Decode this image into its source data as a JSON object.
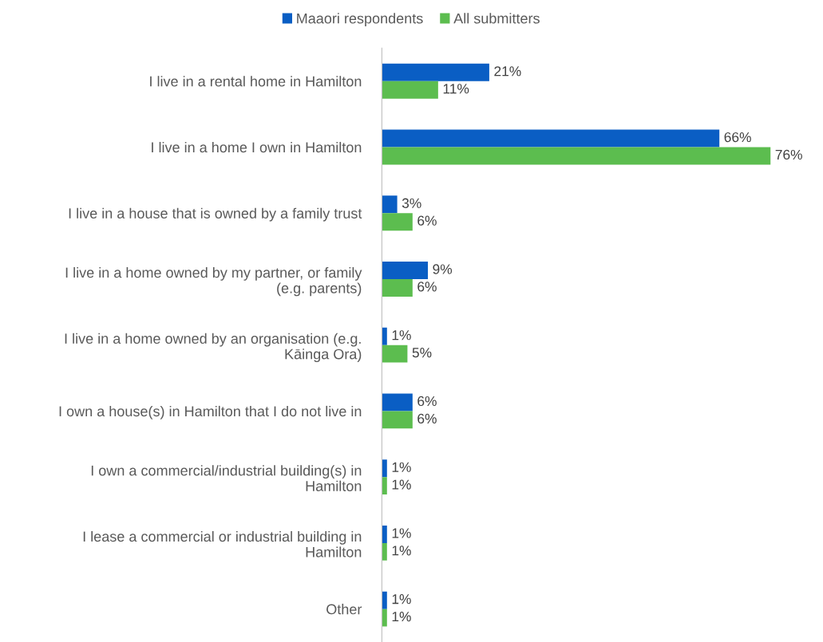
{
  "chart_data": {
    "type": "bar",
    "orientation": "horizontal",
    "categories": [
      "I live in a rental home in Hamilton",
      "I live in a home I own in Hamilton",
      "I live in a house that is owned by a family trust",
      "I live in a home owned by my partner, or family\n(e.g. parents)",
      "I live in a home owned by an organisation (e.g.\nKāinga Ora)",
      "I own a house(s) in Hamilton that I do not live in",
      "I own a commercial/industrial building(s) in\nHamilton",
      "I lease a commercial or industrial building in\nHamilton",
      "Other"
    ],
    "series": [
      {
        "name": "Maaori respondents",
        "color": "#0a5ec4",
        "values": [
          21,
          66,
          3,
          9,
          1,
          6,
          1,
          1,
          1
        ],
        "value_labels": [
          "21%",
          "66%",
          "3%",
          "9%",
          "1%",
          "6%",
          "1%",
          "1%",
          "1%"
        ]
      },
      {
        "name": "All submitters",
        "color": "#5cbd4f",
        "values": [
          11,
          76,
          6,
          6,
          5,
          6,
          1,
          1,
          1
        ],
        "value_labels": [
          "11%",
          "76%",
          "6%",
          "6%",
          "5%",
          "6%",
          "1%",
          "1%",
          "1%"
        ]
      }
    ],
    "legend": "top",
    "grid": false,
    "tick_labels": "y"
  }
}
